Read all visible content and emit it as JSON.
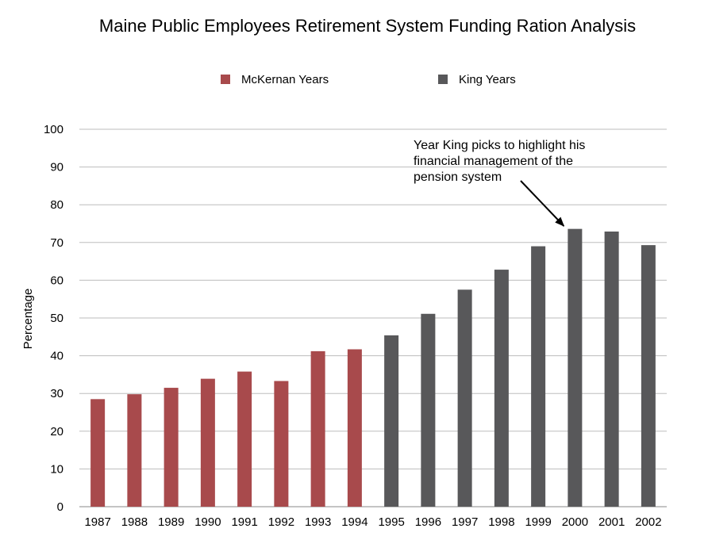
{
  "chart_data": {
    "type": "bar",
    "title": "Maine Public Employees Retirement System Funding Ration Analysis",
    "xlabel": "",
    "ylabel": "Percentage",
    "ylim": [
      0,
      100
    ],
    "yticks": [
      0,
      10,
      20,
      30,
      40,
      50,
      60,
      70,
      80,
      90,
      100
    ],
    "grid": true,
    "legend_position": "top",
    "categories": [
      "1987",
      "1988",
      "1989",
      "1990",
      "1991",
      "1992",
      "1993",
      "1994",
      "1995",
      "1996",
      "1997",
      "1998",
      "1999",
      "2000",
      "2001",
      "2002"
    ],
    "series": [
      {
        "name": "McKernan Years",
        "color": "#a84a4c",
        "values": [
          28.5,
          29.8,
          31.5,
          33.9,
          35.8,
          33.3,
          41.2,
          41.7,
          null,
          null,
          null,
          null,
          null,
          null,
          null,
          null
        ]
      },
      {
        "name": "King Years",
        "color": "#58585a",
        "values": [
          null,
          null,
          null,
          null,
          null,
          null,
          null,
          null,
          45.4,
          51.1,
          57.5,
          62.8,
          69.0,
          73.6,
          72.9,
          69.3
        ]
      }
    ],
    "annotations": [
      {
        "text_lines": [
          "Year King picks to highlight his",
          "financial management of the",
          "pension system"
        ],
        "target_category": "2000"
      }
    ]
  }
}
